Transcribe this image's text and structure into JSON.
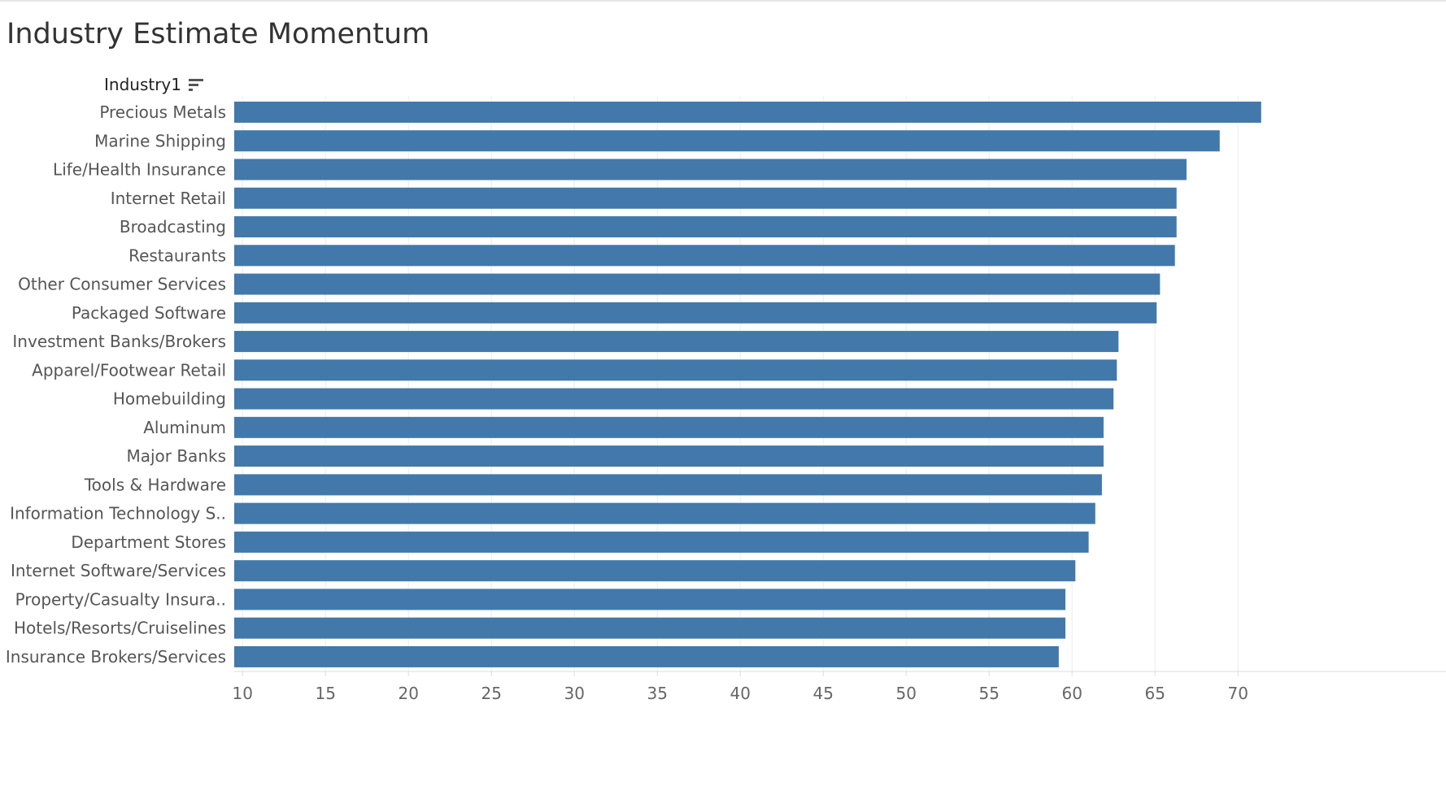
{
  "title": "Industry Estimate Momentum",
  "field_header": {
    "label": "Industry1",
    "sort_icon": "sort-descending-icon"
  },
  "colors": {
    "bar": "#4279aa",
    "title": "#333333",
    "label": "#555555",
    "grid": "#ececec"
  },
  "chart_data": {
    "type": "bar",
    "orientation": "horizontal",
    "title": "Industry Estimate Momentum",
    "ylabel": "Industry1",
    "xlabel": "",
    "xlim": [
      9.5,
      72
    ],
    "xticks": [
      10,
      15,
      20,
      25,
      30,
      35,
      40,
      45,
      50,
      55,
      60,
      65,
      70
    ],
    "grid": true,
    "categories": [
      "Precious Metals",
      "Marine Shipping",
      "Life/Health Insurance",
      "Internet Retail",
      "Broadcasting",
      "Restaurants",
      "Other Consumer Services",
      "Packaged Software",
      "Investment Banks/Brokers",
      "Apparel/Footwear Retail",
      "Homebuilding",
      "Aluminum",
      "Major Banks",
      "Tools & Hardware",
      "Information Technology S..",
      "Department Stores",
      "Internet Software/Services",
      "Property/Casualty Insura..",
      "Hotels/Resorts/Cruiselines",
      "Insurance Brokers/Services"
    ],
    "values": [
      71.4,
      68.9,
      66.9,
      66.3,
      66.3,
      66.2,
      65.3,
      65.1,
      62.8,
      62.7,
      62.5,
      61.9,
      61.9,
      61.8,
      61.4,
      61.0,
      60.2,
      59.6,
      59.6,
      59.2
    ]
  }
}
